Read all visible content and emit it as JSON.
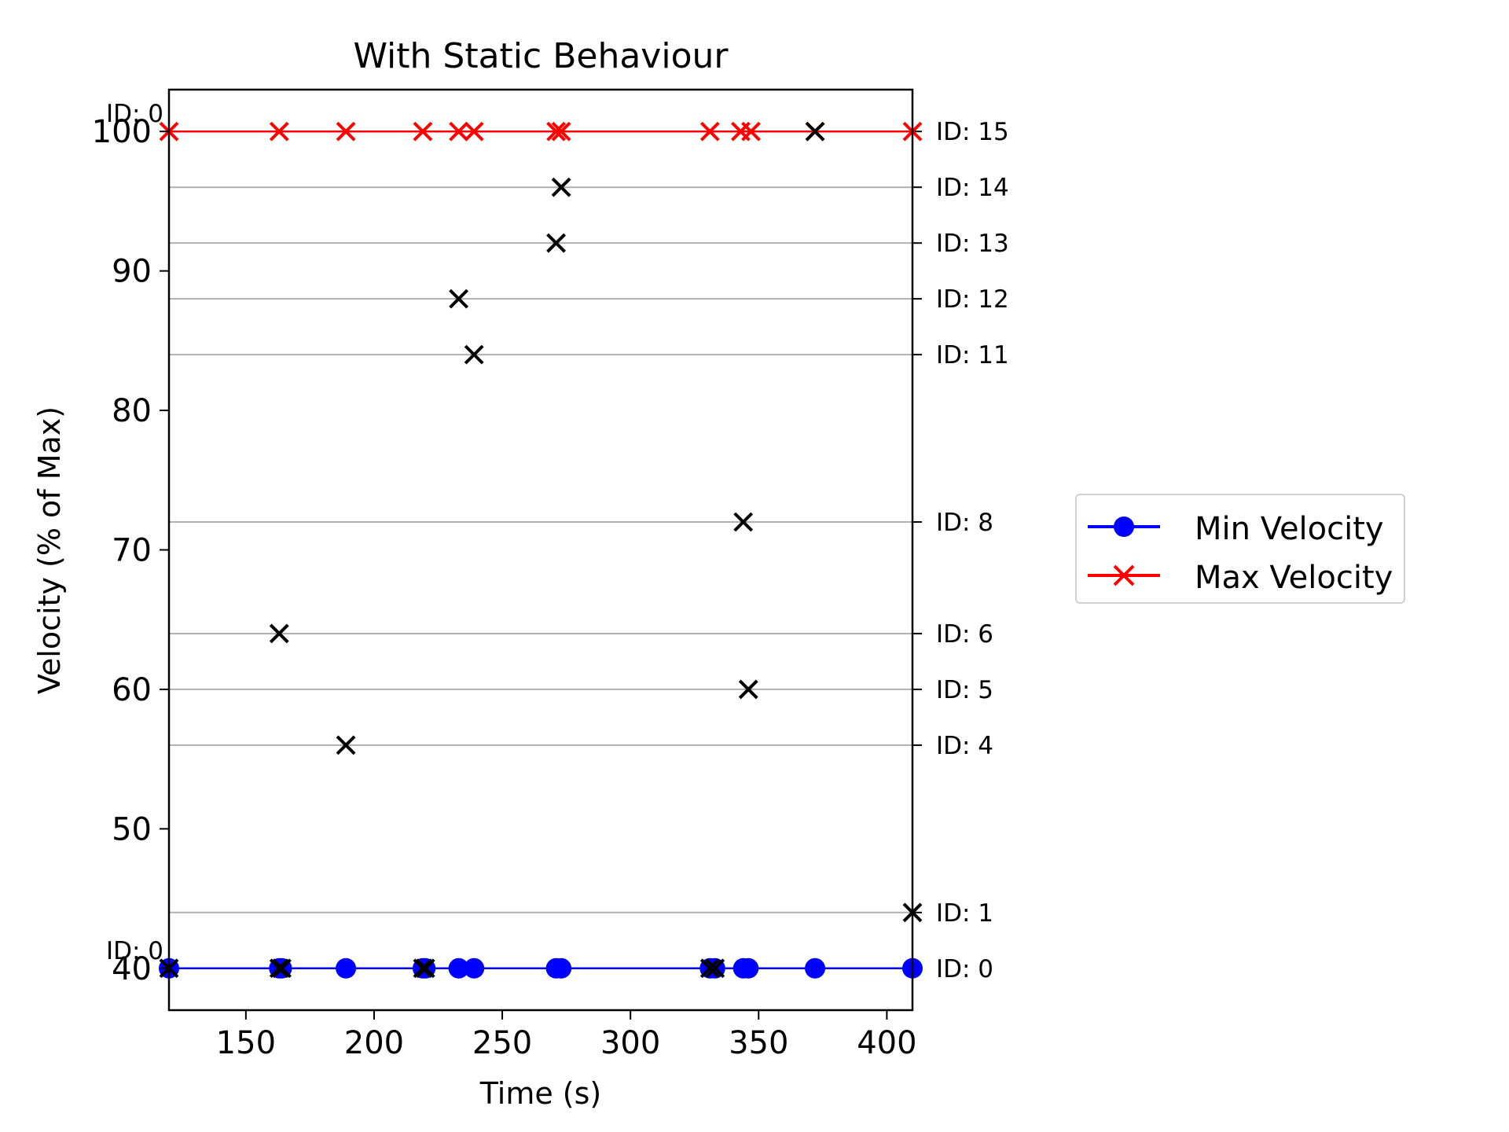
{
  "chart_data": {
    "type": "scatter",
    "title": "With Static Behaviour",
    "xlabel": "Time (s)",
    "ylabel": "Velocity (% of Max)",
    "xlim": [
      120,
      410
    ],
    "ylim": [
      37,
      103
    ],
    "xticks": [
      150,
      200,
      250,
      300,
      350,
      400
    ],
    "yticks": [
      40,
      50,
      60,
      70,
      80,
      90,
      100
    ],
    "legend_position": "right",
    "min_velocity": 40,
    "max_velocity": 100,
    "series": [
      {
        "name": "Min Velocity",
        "color": "#0000ff",
        "marker": "circle",
        "x": [
          120,
          163,
          164,
          189,
          219,
          220,
          233,
          239,
          271,
          273,
          331,
          333,
          344,
          346,
          372,
          410
        ],
        "y": [
          40,
          40,
          40,
          40,
          40,
          40,
          40,
          40,
          40,
          40,
          40,
          40,
          40,
          40,
          40,
          40
        ]
      },
      {
        "name": "Max Velocity",
        "color": "#ff0000",
        "marker": "x",
        "x": [
          120,
          163,
          189,
          219,
          233,
          239,
          271,
          273,
          331,
          343,
          347,
          372,
          410
        ],
        "y": [
          100,
          100,
          100,
          100,
          100,
          100,
          100,
          100,
          100,
          100,
          100,
          100,
          100
        ]
      },
      {
        "color": "#000000",
        "marker": "x",
        "x": [
          120,
          163,
          164,
          219,
          220,
          331,
          333,
          410,
          189,
          346,
          163,
          344,
          239,
          233,
          271,
          273,
          372
        ],
        "y": [
          40,
          40,
          40,
          40,
          40,
          40,
          40,
          44,
          56,
          60,
          64,
          72,
          84,
          88,
          92,
          96,
          100
        ]
      }
    ],
    "id_lines": [
      {
        "label": "ID: 0",
        "y": 40
      },
      {
        "label": "ID: 1",
        "y": 44
      },
      {
        "label": "ID: 4",
        "y": 56
      },
      {
        "label": "ID: 5",
        "y": 60
      },
      {
        "label": "ID: 6",
        "y": 64
      },
      {
        "label": "ID: 8",
        "y": 72
      },
      {
        "label": "ID: 11",
        "y": 84
      },
      {
        "label": "ID: 12",
        "y": 88
      },
      {
        "label": "ID: 13",
        "y": 92
      },
      {
        "label": "ID: 14",
        "y": 96
      },
      {
        "label": "ID: 15",
        "y": 100
      }
    ],
    "corner_labels": [
      {
        "label": "ID: 0",
        "y": 100
      },
      {
        "label": "ID: 0",
        "y": 40
      }
    ]
  }
}
